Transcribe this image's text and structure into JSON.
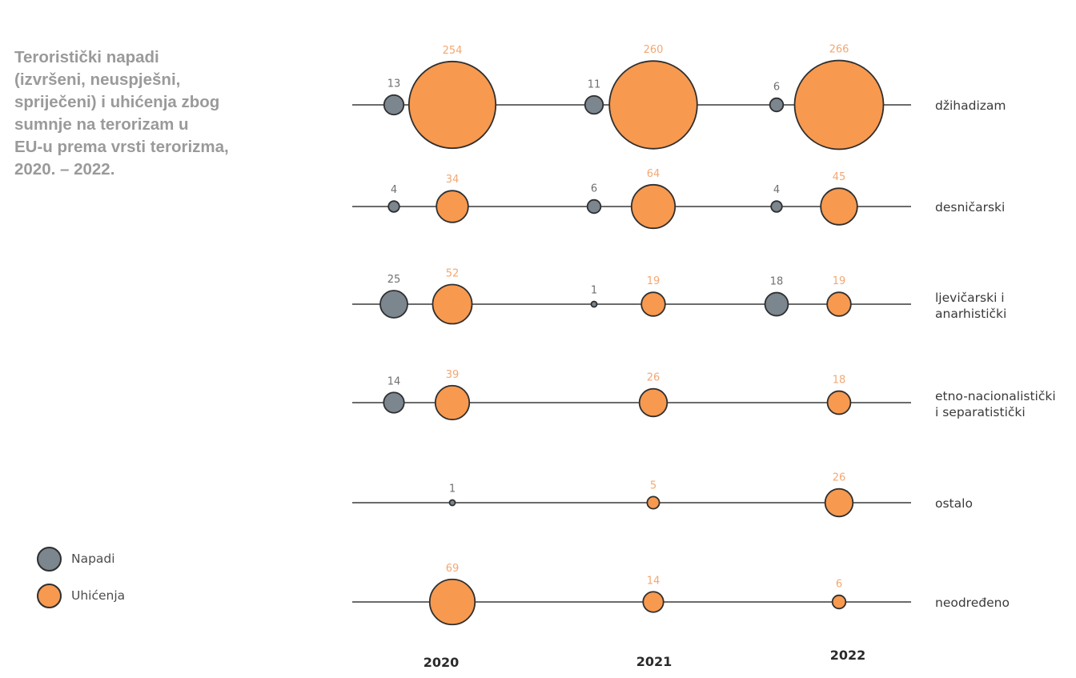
{
  "title_lines": [
    "Teroristički napadi",
    "(izvršeni, neuspješni,",
    "spriječeni) i uhićenja zbog",
    "sumnje na terorizam u",
    "EU-u prema vrsti terorizma,",
    "2020. – 2022."
  ],
  "colors": {
    "napadi": "#7b868e",
    "uhicenja": "#f7994f",
    "outline": "#2f2f2f",
    "line": "#3a3a3a",
    "napadi_label": "#707070",
    "uhicenja_label": "#f3a772",
    "row_label": "#3a3a3a",
    "year_label": "#2a2a2a"
  },
  "legend": [
    {
      "key": "napadi",
      "label": "Napadi",
      "color": "#7b868e"
    },
    {
      "key": "uhicenja",
      "label": "Uhićenja",
      "color": "#f7994f"
    }
  ],
  "chart_data": {
    "type": "scatter",
    "years": [
      "2020",
      "2021",
      "2022"
    ],
    "series_names": [
      "Napadi",
      "Uhićenja"
    ],
    "rows": [
      {
        "label": [
          "džihadizam"
        ],
        "napadi": [
          13,
          11,
          6
        ],
        "uhicenja": [
          254,
          260,
          266
        ]
      },
      {
        "label": [
          "desničarski"
        ],
        "napadi": [
          4,
          6,
          4
        ],
        "uhicenja": [
          34,
          64,
          45
        ]
      },
      {
        "label": [
          "ljevičarski i",
          "anarhistički"
        ],
        "napadi": [
          25,
          1,
          18
        ],
        "uhicenja": [
          52,
          19,
          19
        ]
      },
      {
        "label": [
          "etno-nacionalistički",
          "i separatistički"
        ],
        "napadi": [
          14,
          null,
          null
        ],
        "uhicenja": [
          39,
          26,
          18
        ]
      },
      {
        "label": [
          "ostalo"
        ],
        "napadi": [
          null,
          null,
          null
        ],
        "uhicenja": [
          1,
          5,
          26
        ]
      },
      {
        "label": [
          "neodređeno"
        ],
        "napadi": [
          null,
          null,
          null
        ],
        "uhicenja": [
          69,
          14,
          6
        ]
      }
    ]
  }
}
